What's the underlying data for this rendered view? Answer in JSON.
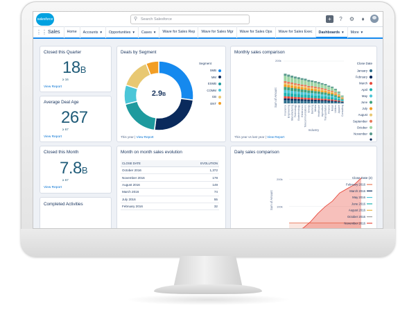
{
  "header": {
    "logo_text": "salesforce",
    "search_placeholder": "Search Salesforce"
  },
  "nav": {
    "app_name": "Sales",
    "items": [
      {
        "label": "Home",
        "caret": false
      },
      {
        "label": "Accounts",
        "caret": true
      },
      {
        "label": "Opportunities",
        "caret": true
      },
      {
        "label": "Cases",
        "caret": true
      },
      {
        "label": "Wave for Sales Rep",
        "caret": false
      },
      {
        "label": "Wave for Sales Mgr",
        "caret": false
      },
      {
        "label": "Wave for Sales Ops",
        "caret": false
      },
      {
        "label": "Wave for Sales Exec",
        "caret": false
      },
      {
        "label": "Dashboards",
        "caret": true,
        "active": true
      },
      {
        "label": "More",
        "caret": true
      }
    ]
  },
  "kpis": {
    "closed_quarter": {
      "title": "Closed this Quarter",
      "value": "18",
      "unit": "B",
      "sub": "≥ 16",
      "link": "View Report"
    },
    "deal_age": {
      "title": "Average Deal Age",
      "value": "267",
      "sub": "≥ 67",
      "link": "View Report"
    },
    "closed_month": {
      "title": "Closed this Month",
      "value": "7.8",
      "unit": "B",
      "sub": "≥ 67",
      "link": "View Report"
    },
    "activities": {
      "title": "Completed Activities"
    }
  },
  "deals_segment": {
    "title": "Deals by Segment",
    "center_value": "2.9",
    "center_unit": "B",
    "legend_title": "Segment",
    "footer_prefix": "This year | ",
    "footer_link": "View Report"
  },
  "monthly": {
    "title": "Monthly sales comparison",
    "ylabel": "Sum of Amount",
    "xlabel": "Industry",
    "tick_top": "200k",
    "legend_title": "Close Date",
    "footer_prefix": "This year vs last year | ",
    "footer_link": "View Report"
  },
  "evolution": {
    "title": "Month on month sales evolution",
    "col1": "CLOSE DATE",
    "col2": "EVOLUTION",
    "rows": [
      {
        "date": "October 2016",
        "value": "1,372"
      },
      {
        "date": "November 2016",
        "value": "178"
      },
      {
        "date": "August 2016",
        "value": "149"
      },
      {
        "date": "March 2016",
        "value": "74"
      },
      {
        "date": "July 2016",
        "value": "55"
      },
      {
        "date": "February 2016",
        "value": "32"
      }
    ]
  },
  "daily": {
    "title": "Daily sales comparison",
    "ylabel": "Sum of Amount",
    "tick_top": "200k",
    "tick_mid": "100k",
    "legend_title": "Close Date (2)",
    "legend": [
      {
        "label": "February 2016",
        "color": "#e8795a"
      },
      {
        "label": "March 2016",
        "color": "#0a2a5c"
      },
      {
        "label": "May 2016",
        "color": "#4bc6d8"
      },
      {
        "label": "June 2016",
        "color": "#1cb3b0"
      },
      {
        "label": "August 2016",
        "color": "#e8b33f"
      },
      {
        "label": "October 2016",
        "color": "#9c9c9c"
      },
      {
        "label": "November 2016",
        "color": "#e84a3d"
      }
    ]
  },
  "chart_data": [
    {
      "type": "pie",
      "title": "Deals by Segment",
      "categories": [
        "SMB",
        "MM",
        "ESMB",
        "COMM",
        "GB",
        "ENT"
      ],
      "values": [
        27,
        25,
        19,
        9,
        14,
        6
      ],
      "colors": [
        "#1589ee",
        "#0a2a5c",
        "#1e9a9e",
        "#4bc6d8",
        "#e8c872",
        "#f29e25"
      ]
    },
    {
      "type": "bar",
      "title": "Monthly sales comparison",
      "xlabel": "Industry",
      "ylabel": "Sum of Amount",
      "ylim": [
        0,
        250
      ],
      "categories": [
        "Insurance",
        "Engineering",
        "Manufacturing",
        "Technology",
        "Biotechnology",
        "Electronics",
        "Telecommunications",
        "Energy",
        "Banking",
        "Media",
        "Healthcare",
        "Agriculture",
        "Transportation",
        "Finance",
        "Retail",
        "Utilities",
        "Apparel",
        "Consulting"
      ],
      "series": [
        {
          "name": "January",
          "color": "#2e6f8e",
          "values": [
            18,
            17,
            16,
            16,
            15,
            14,
            14,
            13,
            13,
            12,
            12,
            11,
            11,
            10,
            9,
            8,
            7,
            5
          ]
        },
        {
          "name": "February",
          "color": "#0a2a5c",
          "values": [
            10,
            10,
            10,
            9,
            9,
            9,
            8,
            8,
            8,
            8,
            7,
            7,
            7,
            6,
            6,
            5,
            4,
            3
          ]
        },
        {
          "name": "March",
          "color": "#e84a3d",
          "values": [
            12,
            12,
            11,
            11,
            11,
            10,
            10,
            10,
            9,
            9,
            9,
            8,
            8,
            7,
            7,
            6,
            5,
            3
          ]
        },
        {
          "name": "April",
          "color": "#1cb3b0",
          "values": [
            20,
            19,
            19,
            18,
            18,
            17,
            17,
            16,
            16,
            15,
            15,
            14,
            13,
            12,
            11,
            10,
            8,
            5
          ]
        },
        {
          "name": "May",
          "color": "#4bc6d8",
          "values": [
            15,
            15,
            14,
            14,
            13,
            13,
            13,
            12,
            12,
            12,
            11,
            11,
            10,
            9,
            9,
            8,
            6,
            4
          ]
        },
        {
          "name": "June",
          "color": "#3ea37d",
          "values": [
            18,
            17,
            17,
            16,
            16,
            15,
            15,
            14,
            14,
            13,
            13,
            12,
            12,
            11,
            10,
            9,
            7,
            5
          ]
        },
        {
          "name": "July",
          "color": "#f29e25",
          "values": [
            14,
            13,
            13,
            13,
            12,
            12,
            12,
            11,
            11,
            11,
            10,
            10,
            9,
            9,
            8,
            7,
            6,
            4
          ]
        },
        {
          "name": "August",
          "color": "#e8c872",
          "values": [
            8,
            8,
            8,
            7,
            7,
            7,
            7,
            6,
            6,
            6,
            6,
            6,
            5,
            5,
            5,
            4,
            3,
            2
          ]
        },
        {
          "name": "September",
          "color": "#e8795a",
          "values": [
            10,
            10,
            9,
            9,
            9,
            9,
            8,
            8,
            8,
            8,
            7,
            7,
            7,
            6,
            6,
            5,
            4,
            3
          ]
        },
        {
          "name": "October",
          "color": "#9ed6a4",
          "values": [
            30,
            29,
            28,
            27,
            26,
            26,
            25,
            24,
            23,
            22,
            21,
            20,
            19,
            18,
            16,
            14,
            11,
            7
          ]
        },
        {
          "name": "November",
          "color": "#5b9b8f",
          "values": [
            12,
            12,
            11,
            11,
            11,
            10,
            10,
            10,
            9,
            9,
            9,
            8,
            8,
            7,
            7,
            6,
            5,
            3
          ]
        }
      ]
    },
    {
      "type": "line",
      "title": "Daily sales comparison",
      "ylabel": "Sum of Amount",
      "ylim": [
        0,
        250
      ],
      "x": [
        1,
        4,
        7,
        10,
        13,
        16,
        19,
        22,
        25,
        28,
        31
      ],
      "series": [
        {
          "name": "February 2016",
          "color": "#e8795a",
          "values": [
            40,
            40,
            40,
            40,
            40,
            40,
            40,
            40,
            40,
            40,
            40
          ],
          "fill": true
        },
        {
          "name": "November 2016",
          "color": "#e84a3d",
          "values": [
            2,
            8,
            22,
            45,
            75,
            100,
            120,
            150,
            165,
            180,
            205
          ],
          "fill": true
        }
      ]
    }
  ]
}
